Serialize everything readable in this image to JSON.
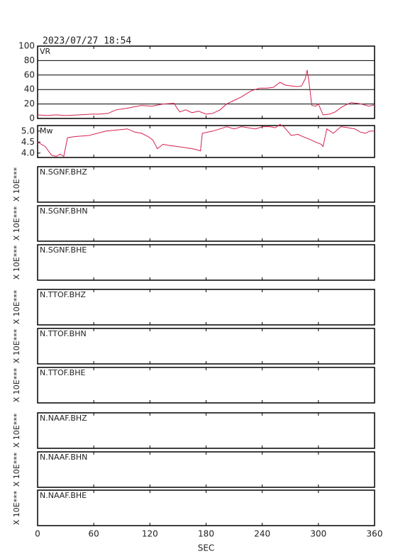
{
  "chart_data": [
    {
      "type": "line",
      "title": "2023/07/27 18:54",
      "label": "VR",
      "color": "#d6204e",
      "x": [
        0,
        10,
        20,
        30,
        45,
        58,
        66,
        75,
        84,
        95,
        111,
        122,
        134,
        146,
        149,
        152,
        158,
        165,
        172,
        180,
        187,
        195,
        202,
        210,
        218,
        228,
        237,
        245,
        252,
        259,
        265,
        271,
        277,
        282,
        286,
        288,
        290,
        293,
        297,
        300,
        305,
        312,
        318,
        324,
        330,
        335,
        341,
        346,
        354,
        360
      ],
      "values": [
        5,
        4,
        5,
        4,
        5,
        6,
        6,
        7,
        12,
        14,
        18,
        17,
        20,
        21,
        14,
        9,
        12,
        8,
        10,
        6,
        7,
        12,
        20,
        25,
        30,
        38,
        42,
        42,
        43,
        50,
        46,
        45,
        44,
        45,
        55,
        67,
        50,
        18,
        17,
        20,
        5,
        6,
        9,
        15,
        19,
        22,
        21,
        20,
        17,
        19
      ],
      "xlim": [
        0,
        360
      ],
      "ylim": [
        0,
        100
      ],
      "yticks": [
        0,
        20,
        40,
        60,
        80,
        100
      ],
      "grid": true
    },
    {
      "type": "line",
      "label": "Mw",
      "color": "#d6204e",
      "x": [
        0,
        8,
        15,
        20,
        24,
        28,
        32,
        40,
        55,
        73,
        85,
        96,
        104,
        111,
        118,
        123,
        128,
        134,
        140,
        149,
        157,
        165,
        170,
        174,
        176,
        187,
        195,
        202,
        210,
        218,
        225,
        233,
        240,
        248,
        254,
        259,
        263,
        271,
        278,
        286,
        292,
        297,
        303,
        305,
        309,
        316,
        324,
        332,
        339,
        345,
        350,
        355,
        360
      ],
      "values": [
        4.5,
        4.3,
        3.9,
        3.85,
        3.95,
        3.85,
        4.7,
        4.75,
        4.8,
        5.0,
        5.05,
        5.1,
        4.95,
        4.9,
        4.75,
        4.6,
        4.2,
        4.4,
        4.35,
        4.3,
        4.25,
        4.2,
        4.15,
        4.1,
        4.9,
        5.0,
        5.1,
        5.2,
        5.1,
        5.2,
        5.15,
        5.1,
        5.2,
        5.2,
        5.15,
        5.3,
        5.2,
        4.8,
        4.85,
        4.7,
        4.6,
        4.5,
        4.4,
        4.3,
        5.1,
        4.9,
        5.2,
        5.15,
        5.1,
        4.95,
        4.9,
        5.0,
        5.0
      ],
      "xlim": [
        0,
        360
      ],
      "ylim": [
        3.8,
        5.25
      ],
      "yticks": [
        {
          "value": 4.0,
          "label": "4.0"
        },
        {
          "value": 4.5,
          "label": "4.5"
        },
        {
          "value": 5.0,
          "label": "5.0"
        }
      ],
      "grid": false
    },
    {
      "type": "line",
      "label": "N.SGNF.BHZ",
      "y_label": "X 10E***",
      "xlim": [
        0,
        360
      ]
    },
    {
      "type": "line",
      "label": "N.SGNF.BHN",
      "y_label": "X 10E***",
      "xlim": [
        0,
        360
      ]
    },
    {
      "type": "line",
      "label": "N.SGNF.BHE",
      "y_label": "X 10E***",
      "xlim": [
        0,
        360
      ]
    },
    {
      "type": "line",
      "label": "N.TTOF.BHZ",
      "y_label": "X 10E***",
      "xlim": [
        0,
        360
      ]
    },
    {
      "type": "line",
      "label": "N.TTOF.BHN",
      "y_label": "X 10E***",
      "xlim": [
        0,
        360
      ]
    },
    {
      "type": "line",
      "label": "N.TTOF.BHE",
      "y_label": "X 10E***",
      "xlim": [
        0,
        360
      ]
    },
    {
      "type": "line",
      "label": "N.NAAF.BHZ",
      "y_label": "X 10E***",
      "xlim": [
        0,
        360
      ]
    },
    {
      "type": "line",
      "label": "N.NAAF.BHN",
      "y_label": "X 10E***",
      "xlim": [
        0,
        360
      ]
    },
    {
      "type": "line",
      "label": "N.NAAF.BHE",
      "y_label": "X 10E***",
      "xlim": [
        0,
        360
      ],
      "xticks": [
        0,
        60,
        120,
        180,
        240,
        300,
        360
      ],
      "x_label": "SEC"
    }
  ]
}
